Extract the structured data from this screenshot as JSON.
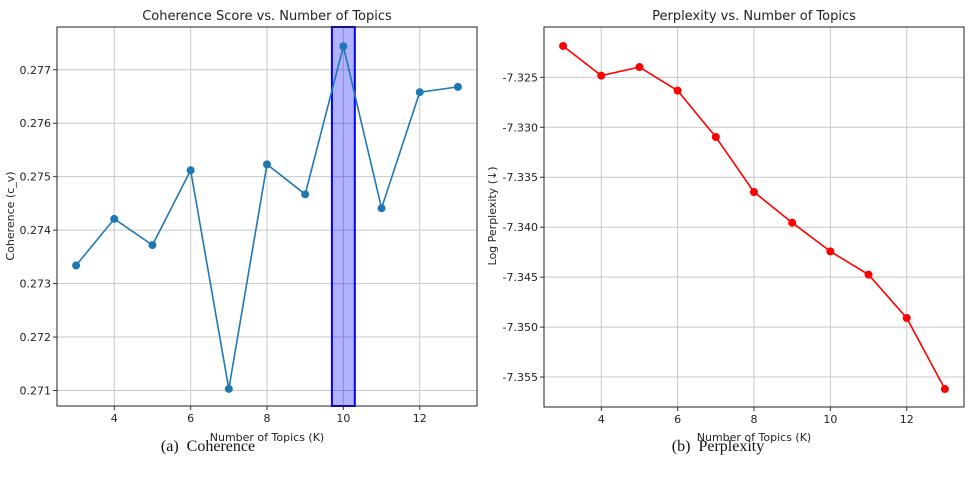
{
  "chart_data": [
    {
      "type": "line",
      "title": "Coherence Score vs. Number of Topics",
      "xlabel": "Number of Topics (K)",
      "ylabel": "Coherence (c_v)",
      "caption": "(a)  Coherence",
      "x": [
        3,
        4,
        5,
        6,
        7,
        8,
        9,
        10,
        11,
        12,
        13
      ],
      "values": [
        0.27334,
        0.27421,
        0.27372,
        0.27512,
        0.27103,
        0.27523,
        0.27467,
        0.27744,
        0.27441,
        0.27658,
        0.27668
      ],
      "xlim": [
        2.5,
        13.5
      ],
      "ylim": [
        0.27071,
        0.2778
      ],
      "xticks": [
        4,
        6,
        8,
        10,
        12
      ],
      "xtick_labels": [
        "4",
        "6",
        "8",
        "10",
        "12"
      ],
      "yticks": [
        0.271,
        0.272,
        0.273,
        0.274,
        0.275,
        0.276,
        0.277
      ],
      "ytick_labels": [
        "0.271",
        "0.272",
        "0.273",
        "0.274",
        "0.275",
        "0.276",
        "0.277"
      ],
      "grid": true,
      "color": "#1f77b4",
      "highlight": {
        "x_range": [
          9.7,
          10.3
        ],
        "fill": "#0000ff",
        "edge": "#0000ff",
        "alpha": 0.3
      }
    },
    {
      "type": "line",
      "title": "Perplexity vs. Number of Topics",
      "xlabel": "Number of Topics (K)",
      "ylabel": "Log Perplexity (↓)",
      "caption": "(b)  Perplexity",
      "x": [
        3,
        4,
        5,
        6,
        7,
        8,
        9,
        10,
        11,
        12,
        13
      ],
      "values": [
        -7.32186,
        -7.32483,
        -7.32397,
        -7.32633,
        -7.33097,
        -7.33648,
        -7.33955,
        -7.34242,
        -7.34475,
        -7.34909,
        -7.3562
      ],
      "xlim": [
        2.5,
        13.5
      ],
      "ylim": [
        -7.358,
        -7.31996
      ],
      "xticks": [
        4,
        6,
        8,
        10,
        12
      ],
      "xtick_labels": [
        "4",
        "6",
        "8",
        "10",
        "12"
      ],
      "yticks": [
        -7.355,
        -7.35,
        -7.345,
        -7.34,
        -7.335,
        -7.33,
        -7.325
      ],
      "ytick_labels": [
        "-7.355",
        "-7.350",
        "-7.345",
        "-7.340",
        "-7.335",
        "-7.330",
        "-7.325"
      ],
      "grid": true,
      "color": "#ff0000"
    }
  ]
}
